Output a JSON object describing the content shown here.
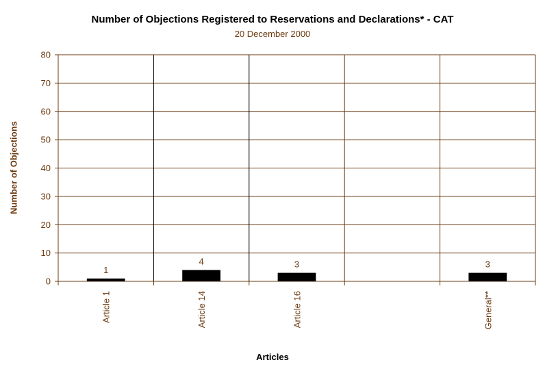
{
  "chart_data": {
    "type": "bar",
    "title": "Number of Objections Registered to Reservations and Declarations* - CAT",
    "subtitle": "20 December 2000",
    "xlabel": "Articles",
    "ylabel": "Number of Objections",
    "categories": [
      "Article 1",
      "Article 14",
      "Article 16",
      "",
      "General**"
    ],
    "values": [
      1,
      4,
      3,
      null,
      3
    ],
    "data_labels": [
      "1",
      "4",
      "3",
      "",
      "3"
    ],
    "ylim": [
      0,
      80
    ],
    "yticks": [
      0,
      10,
      20,
      30,
      40,
      50,
      60,
      70,
      80
    ],
    "grid": true,
    "legend": "none",
    "colors": {
      "bar": "#000000",
      "grid": "#6b3a10",
      "text": "#6b3a10"
    }
  }
}
